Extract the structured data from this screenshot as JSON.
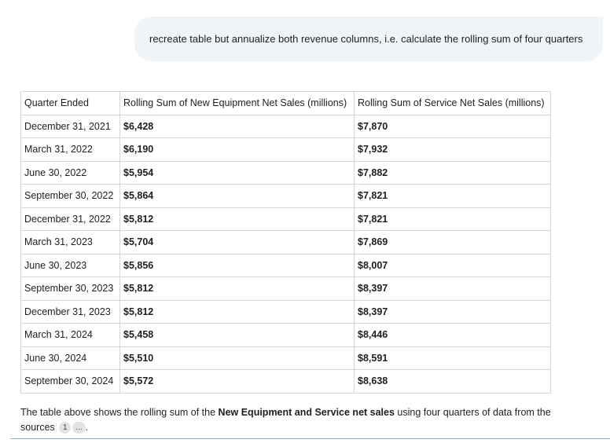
{
  "user_prompt": "recreate table but annualize both revenue columns, i.e. calculate the rolling sum of four quarters",
  "table": {
    "headers": [
      "Quarter Ended",
      "Rolling Sum of New Equipment Net Sales (millions)",
      "Rolling Sum of Service Net Sales (millions)"
    ],
    "rows": [
      [
        "December 31, 2021",
        "$6,428",
        "$7,870"
      ],
      [
        "March 31, 2022",
        "$6,190",
        "$7,932"
      ],
      [
        "June 30, 2022",
        "$5,954",
        "$7,882"
      ],
      [
        "September 30, 2022",
        "$5,864",
        "$7,821"
      ],
      [
        "December 31, 2022",
        "$5,812",
        "$7,821"
      ],
      [
        "March 31, 2023",
        "$5,704",
        "$7,869"
      ],
      [
        "June 30, 2023",
        "$5,856",
        "$8,007"
      ],
      [
        "September 30, 2023",
        "$5,812",
        "$8,397"
      ],
      [
        "December 31, 2023",
        "$5,812",
        "$8,397"
      ],
      [
        "March 31, 2024",
        "$5,458",
        "$8,446"
      ],
      [
        "June 30, 2024",
        "$5,510",
        "$8,591"
      ],
      [
        "September 30, 2024",
        "$5,572",
        "$8,638"
      ]
    ]
  },
  "summary": {
    "prefix": "The table above shows the rolling sum of the ",
    "bold": "New Equipment and Service net sales",
    "suffix": " using four quarters of data from the sources",
    "source_chip": "1",
    "more_chip": "...",
    "end": "."
  }
}
